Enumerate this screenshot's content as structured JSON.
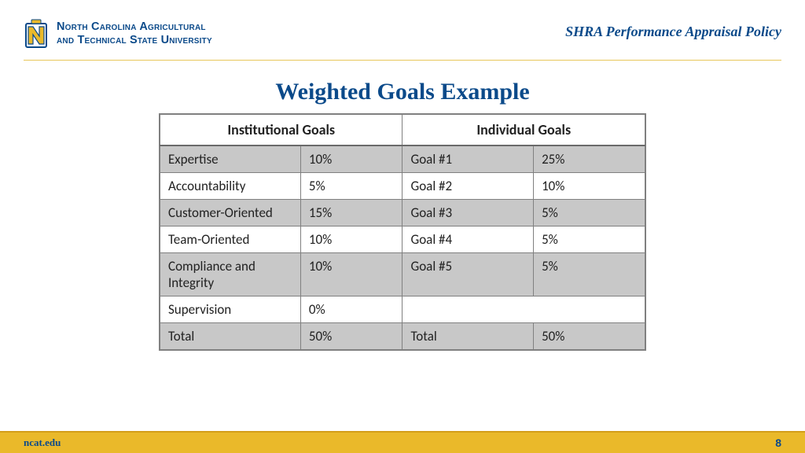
{
  "colors": {
    "brand_blue": "#0b4a8a",
    "brand_gold": "#eab92a",
    "rule_gold": "#e7c75b",
    "table_border": "#808080",
    "shade_row": "#c8c8c8",
    "white_row": "#ffffff",
    "text": "#222222"
  },
  "header": {
    "university_line1": "North Carolina Agricultural",
    "university_line2": "and Technical State University",
    "policy_title": "SHRA Performance Appraisal Policy"
  },
  "title": "Weighted Goals Example",
  "table": {
    "type": "table",
    "columns": [
      {
        "label": "Institutional Goals",
        "span": 2,
        "width_pct": 50,
        "align": "center"
      },
      {
        "label": "Individual Goals",
        "span": 2,
        "width_pct": 50,
        "align": "center"
      }
    ],
    "col_widths_pct": [
      29,
      21,
      27,
      23
    ],
    "header_fontsize": 18,
    "cell_fontsize": 17,
    "border_color": "#808080",
    "rows": [
      {
        "shade": true,
        "cells": [
          "Expertise",
          "10%",
          "Goal #1",
          "25%"
        ]
      },
      {
        "shade": false,
        "cells": [
          "Accountability",
          "5%",
          "Goal #2",
          "10%"
        ]
      },
      {
        "shade": true,
        "cells": [
          "Customer-Oriented",
          "15%",
          "Goal #3",
          "5%"
        ]
      },
      {
        "shade": false,
        "cells": [
          "Team-Oriented",
          "10%",
          "Goal #4",
          "5%"
        ]
      },
      {
        "shade": true,
        "cells": [
          "Compliance and Integrity",
          "10%",
          "Goal #5",
          "5%"
        ]
      },
      {
        "shade": false,
        "cells": [
          "Supervision",
          "0%",
          "",
          ""
        ],
        "merge_last_two": true
      },
      {
        "shade": true,
        "cells": [
          "Total",
          "50%",
          "Total",
          "50%"
        ]
      }
    ]
  },
  "footer": {
    "url": "ncat.edu",
    "page": "8"
  }
}
